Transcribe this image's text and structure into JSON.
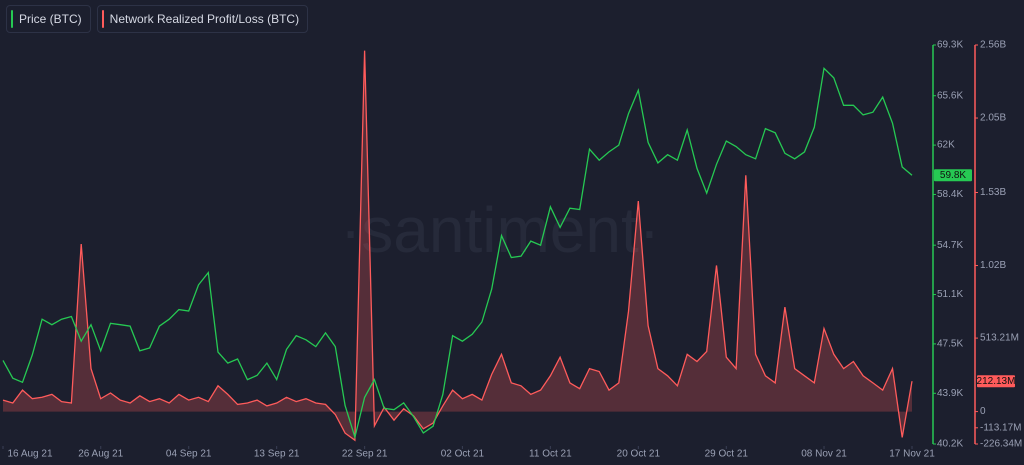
{
  "chart_data": {
    "type": "line",
    "watermark": "·santiment·",
    "x": [
      "2021-08-16",
      "2021-08-17",
      "2021-08-18",
      "2021-08-19",
      "2021-08-20",
      "2021-08-21",
      "2021-08-22",
      "2021-08-23",
      "2021-08-24",
      "2021-08-25",
      "2021-08-26",
      "2021-08-27",
      "2021-08-28",
      "2021-08-29",
      "2021-08-30",
      "2021-08-31",
      "2021-09-01",
      "2021-09-02",
      "2021-09-03",
      "2021-09-04",
      "2021-09-05",
      "2021-09-06",
      "2021-09-07",
      "2021-09-08",
      "2021-09-09",
      "2021-09-10",
      "2021-09-11",
      "2021-09-12",
      "2021-09-13",
      "2021-09-14",
      "2021-09-15",
      "2021-09-16",
      "2021-09-17",
      "2021-09-18",
      "2021-09-19",
      "2021-09-20",
      "2021-09-21",
      "2021-09-22",
      "2021-09-23",
      "2021-09-24",
      "2021-09-25",
      "2021-09-26",
      "2021-09-27",
      "2021-09-28",
      "2021-09-29",
      "2021-09-30",
      "2021-10-01",
      "2021-10-02",
      "2021-10-03",
      "2021-10-04",
      "2021-10-05",
      "2021-10-06",
      "2021-10-07",
      "2021-10-08",
      "2021-10-09",
      "2021-10-10",
      "2021-10-11",
      "2021-10-12",
      "2021-10-13",
      "2021-10-14",
      "2021-10-15",
      "2021-10-16",
      "2021-10-17",
      "2021-10-18",
      "2021-10-19",
      "2021-10-20",
      "2021-10-21",
      "2021-10-22",
      "2021-10-23",
      "2021-10-24",
      "2021-10-25",
      "2021-10-26",
      "2021-10-27",
      "2021-10-28",
      "2021-10-29",
      "2021-10-30",
      "2021-10-31",
      "2021-11-01",
      "2021-11-02",
      "2021-11-03",
      "2021-11-04",
      "2021-11-05",
      "2021-11-06",
      "2021-11-07",
      "2021-11-08",
      "2021-11-09",
      "2021-11-10",
      "2021-11-11",
      "2021-11-12",
      "2021-11-13",
      "2021-11-14",
      "2021-11-15",
      "2021-11-16",
      "2021-11-17"
    ],
    "xlim": [
      "2021-08-16",
      "2021-11-17"
    ],
    "xticks": [
      {
        "value": "2021-08-16",
        "label": "16 Aug 21"
      },
      {
        "value": "2021-08-26",
        "label": "26 Aug 21"
      },
      {
        "value": "2021-09-04",
        "label": "04 Sep 21"
      },
      {
        "value": "2021-09-13",
        "label": "13 Sep 21"
      },
      {
        "value": "2021-09-22",
        "label": "22 Sep 21"
      },
      {
        "value": "2021-10-02",
        "label": "02 Oct 21"
      },
      {
        "value": "2021-10-11",
        "label": "11 Oct 21"
      },
      {
        "value": "2021-10-20",
        "label": "20 Oct 21"
      },
      {
        "value": "2021-10-29",
        "label": "29 Oct 21"
      },
      {
        "value": "2021-11-08",
        "label": "08 Nov 21"
      },
      {
        "value": "2021-11-17",
        "label": "17 Nov 21"
      }
    ],
    "ylim": [
      40200,
      69300
    ],
    "yticks": [
      {
        "value": 40200,
        "label": "40.2K"
      },
      {
        "value": 43900,
        "label": "43.9K"
      },
      {
        "value": 47500,
        "label": "47.5K"
      },
      {
        "value": 51100,
        "label": "51.1K"
      },
      {
        "value": 54700,
        "label": "54.7K"
      },
      {
        "value": 58400,
        "label": "58.4K"
      },
      {
        "value": 62000,
        "label": "62K"
      },
      {
        "value": 65600,
        "label": "65.6K"
      },
      {
        "value": 69300,
        "label": "69.3K"
      }
    ],
    "y2lim": [
      -226340000,
      2560000000
    ],
    "y2ticks": [
      {
        "value": -226340000,
        "label": "-226.34M"
      },
      {
        "value": -113170000,
        "label": "-113.17M"
      },
      0,
      {
        "value": 513210000,
        "label": "513.21M"
      },
      {
        "value": 1020000000,
        "label": "1.02B"
      },
      {
        "value": 1530000000,
        "label": "1.53B"
      },
      {
        "value": 2050000000,
        "label": "2.05B"
      },
      {
        "value": 2560000000,
        "label": "2.56B"
      }
    ],
    "series": [
      {
        "name": "Price (BTC)",
        "color": "#26c953",
        "last_label": "59.8K",
        "values": [
          46300,
          45000,
          44700,
          46700,
          49300,
          48900,
          49300,
          49500,
          47700,
          48900,
          47000,
          49000,
          48900,
          48800,
          47000,
          47200,
          48800,
          49300,
          50000,
          49900,
          51800,
          52700,
          46900,
          46100,
          46400,
          44900,
          45200,
          46100,
          44900,
          47100,
          48100,
          47800,
          47300,
          48300,
          47300,
          43000,
          40700,
          43600,
          44900,
          42800,
          42700,
          43200,
          42200,
          41000,
          41500,
          43800,
          48100,
          47700,
          48200,
          49100,
          51500,
          55400,
          53800,
          53900,
          55000,
          54700,
          57500,
          56000,
          57400,
          57300,
          61700,
          60900,
          61500,
          62000,
          64300,
          66000,
          62200,
          60700,
          61300,
          60900,
          63100,
          60300,
          58500,
          60600,
          62300,
          61900,
          61300,
          61000,
          63200,
          62900,
          61400,
          61000,
          61500,
          63300,
          67600,
          66900,
          64900,
          64900,
          64200,
          64400,
          65500,
          63600,
          60400,
          59800
        ]
      },
      {
        "name": "Network Realized Profit/Loss (BTC)",
        "color": "#ff5b5b",
        "axis": "y2",
        "last_label": "212.13M",
        "values": [
          80000000,
          60000000,
          150000000,
          90000000,
          100000000,
          120000000,
          70000000,
          60000000,
          1170000000,
          300000000,
          90000000,
          130000000,
          80000000,
          60000000,
          110000000,
          70000000,
          90000000,
          60000000,
          120000000,
          80000000,
          100000000,
          70000000,
          180000000,
          120000000,
          50000000,
          60000000,
          80000000,
          40000000,
          60000000,
          100000000,
          70000000,
          90000000,
          60000000,
          50000000,
          -20000000,
          -150000000,
          -200000000,
          2520000000,
          -100000000,
          30000000,
          -60000000,
          20000000,
          -30000000,
          -120000000,
          -80000000,
          40000000,
          150000000,
          90000000,
          120000000,
          80000000,
          260000000,
          400000000,
          200000000,
          180000000,
          120000000,
          150000000,
          250000000,
          380000000,
          200000000,
          160000000,
          300000000,
          280000000,
          150000000,
          200000000,
          700000000,
          1470000000,
          600000000,
          300000000,
          250000000,
          180000000,
          400000000,
          350000000,
          420000000,
          1020000000,
          380000000,
          300000000,
          1650000000,
          400000000,
          250000000,
          200000000,
          730000000,
          300000000,
          250000000,
          200000000,
          580000000,
          400000000,
          300000000,
          350000000,
          250000000,
          200000000,
          150000000,
          300000000,
          -180000000,
          212130000
        ]
      }
    ]
  }
}
